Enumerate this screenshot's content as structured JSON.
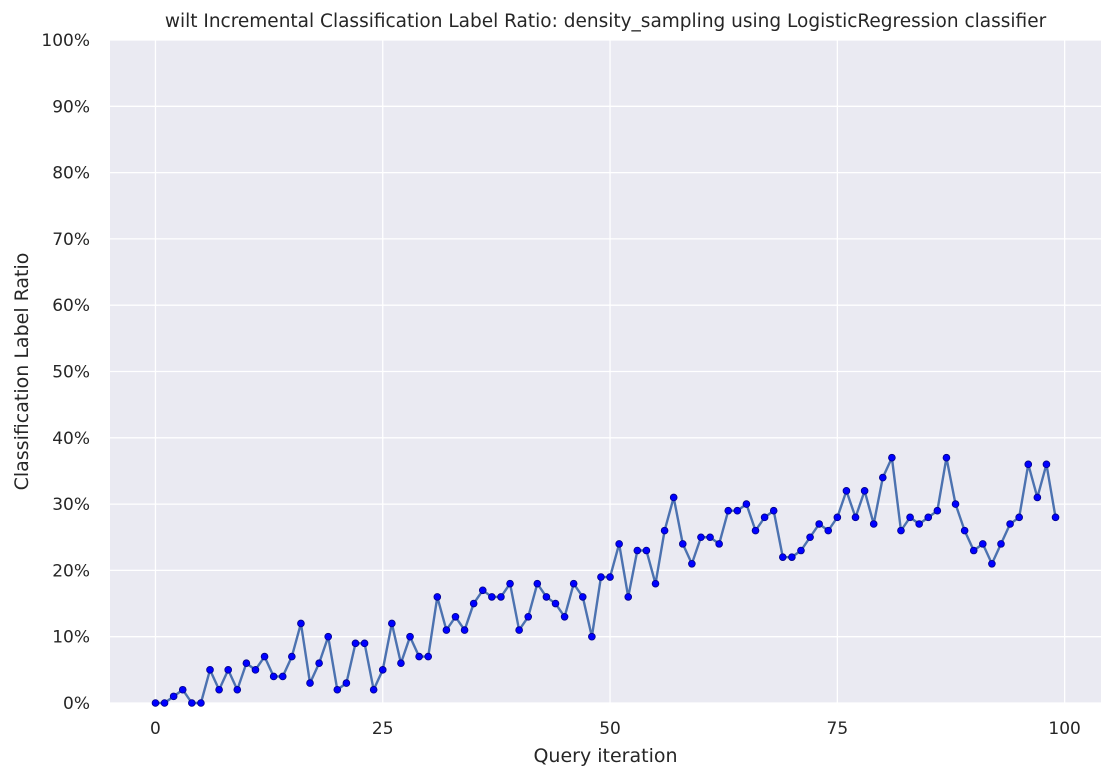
{
  "chart_data": {
    "type": "line",
    "title": "wilt Incremental Classification Label Ratio: density_sampling using LogisticRegression classifier",
    "xlabel": "Query iteration",
    "ylabel": "Classification Label Ratio",
    "xlim": [
      -5,
      104
    ],
    "ylim": [
      0,
      100
    ],
    "x_ticks": [
      0,
      25,
      50,
      75,
      100
    ],
    "x_tick_labels": [
      "0",
      "25",
      "50",
      "75",
      "100"
    ],
    "y_ticks": [
      0,
      10,
      20,
      30,
      40,
      50,
      60,
      70,
      80,
      90,
      100
    ],
    "y_tick_labels": [
      "0%",
      "10%",
      "20%",
      "30%",
      "40%",
      "50%",
      "60%",
      "70%",
      "80%",
      "90%",
      "100%"
    ],
    "grid": true,
    "legend": "none",
    "colors": {
      "background": "#eaeaf2",
      "grid": "#ffffff",
      "line": "#4c72b0",
      "marker_fill": "#0000ff",
      "marker_edge": "#00008b"
    },
    "series": [
      {
        "values": [
          0,
          0,
          1,
          2,
          0,
          0,
          5,
          2,
          5,
          2,
          6,
          5,
          7,
          4,
          4,
          7,
          12,
          3,
          6,
          10,
          2,
          3,
          9,
          9,
          2,
          5,
          12,
          6,
          10,
          7,
          7,
          16,
          11,
          13,
          11,
          15,
          17,
          16,
          16,
          18,
          11,
          13,
          18,
          16,
          15,
          13,
          18,
          16,
          10,
          19,
          19,
          24,
          16,
          23,
          23,
          18,
          26,
          31,
          24,
          21,
          25,
          25,
          24,
          29,
          29,
          30,
          26,
          28,
          29,
          22,
          22,
          23,
          25,
          27,
          26,
          28,
          32,
          28,
          32,
          27,
          34,
          37,
          26,
          28,
          27,
          28,
          29,
          37,
          30,
          26,
          23,
          24,
          21,
          24,
          27,
          28,
          36,
          31,
          36,
          28
        ]
      }
    ]
  }
}
